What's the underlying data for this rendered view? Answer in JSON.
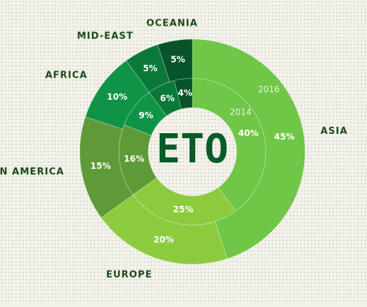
{
  "chart_data": {
    "type": "donut",
    "center_label": "ETO",
    "categories": [
      "Asia",
      "Europe",
      "Latin America",
      "Africa",
      "Mid-East",
      "Oceania"
    ],
    "colors": [
      "#6fc647",
      "#8ccb3e",
      "#5f9a38",
      "#0f9447",
      "#0a7838",
      "#07542a"
    ],
    "series": [
      {
        "name": "2016",
        "values": [
          45,
          20,
          15,
          10,
          5,
          5
        ],
        "value_labels": [
          "45%",
          "20%",
          "15%",
          "10%",
          "5%",
          "5%"
        ]
      },
      {
        "name": "2014",
        "values": [
          40,
          25,
          16,
          9,
          6,
          4
        ],
        "value_labels": [
          "40%",
          "25%",
          "16%",
          "9%",
          "6%",
          "4%"
        ]
      }
    ]
  }
}
